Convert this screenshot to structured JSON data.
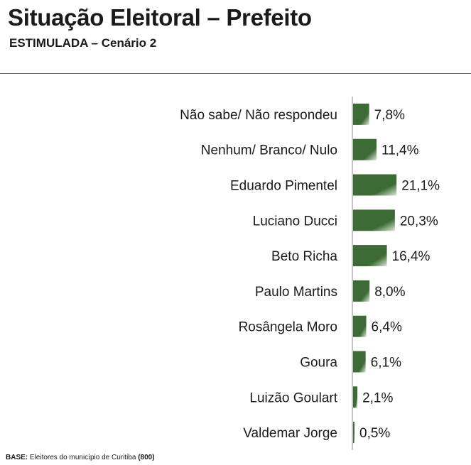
{
  "header": {
    "title": "Situação Eleitoral – Prefeito",
    "subtitle": "ESTIMULADA – Cenário 2"
  },
  "footnote": {
    "label": "BASE:",
    "text": " Eleitores do município de Curitiba ",
    "count": "(800)"
  },
  "colors": {
    "bar_dark": "#3d6b35",
    "bar_light": "#dde8d9",
    "axis": "#8a8a8a",
    "rule": "#4f7a43"
  },
  "chart_data": {
    "type": "bar",
    "orientation": "horizontal",
    "categories": [
      "Não sabe/ Não respondeu",
      "Nenhum/ Branco/ Nulo",
      "Eduardo Pimentel",
      "Luciano Ducci",
      "Beto Richa",
      "Paulo Martins",
      "Rosângela Moro",
      "Goura",
      "Luizão Goulart",
      "Valdemar Jorge"
    ],
    "values": [
      7.8,
      11.4,
      21.1,
      20.3,
      16.4,
      8.0,
      6.4,
      6.1,
      2.1,
      0.5
    ],
    "value_labels": [
      "7,8%",
      "11,4%",
      "21,1%",
      "20,3%",
      "16,4%",
      "8,0%",
      "6,4%",
      "6,1%",
      "2,1%",
      "0,5%"
    ],
    "unit": "%",
    "grid": false,
    "legend": "none"
  }
}
